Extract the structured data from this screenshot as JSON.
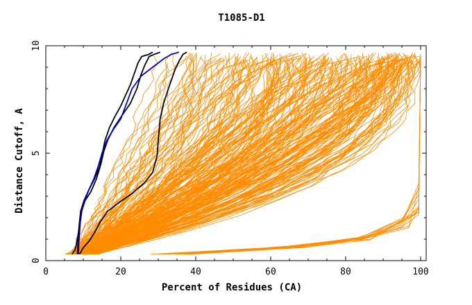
{
  "chart_data": {
    "type": "line",
    "title": "T1085-D1",
    "xlabel": "Percent of Residues (CA)",
    "ylabel": "Distance Cutoff, A",
    "xlim": [
      0,
      100
    ],
    "ylim": [
      0,
      10
    ],
    "x_ticks": [
      0,
      20,
      40,
      60,
      80,
      100
    ],
    "y_ticks": [
      0,
      5,
      10
    ],
    "grid": false,
    "colors": {
      "orange": "#ff8c00",
      "black": "#000000",
      "blue": "#0000cc",
      "axis": "#000000"
    },
    "series": [
      {
        "name": "black-1",
        "color": "black",
        "points": [
          [
            7,
            0.3
          ],
          [
            7.8,
            0.5
          ],
          [
            8.2,
            0.8
          ],
          [
            8.7,
            1.3
          ],
          [
            9,
            1.8
          ],
          [
            9.3,
            2.3
          ],
          [
            10.2,
            2.8
          ],
          [
            11.5,
            3.3
          ],
          [
            13,
            3.8
          ],
          [
            14.4,
            4.4
          ],
          [
            15.1,
            5
          ],
          [
            15.8,
            5.6
          ],
          [
            17,
            6.2
          ],
          [
            18.4,
            6.7
          ],
          [
            20,
            7.2
          ],
          [
            21.3,
            7.7
          ],
          [
            22.6,
            8.2
          ],
          [
            23.6,
            8.7
          ],
          [
            24.6,
            9.2
          ],
          [
            25.6,
            9.5
          ],
          [
            27.5,
            9.6
          ],
          [
            28.5,
            9.7
          ]
        ]
      },
      {
        "name": "black-2",
        "color": "black",
        "points": [
          [
            8.4,
            0.3
          ],
          [
            8.6,
            0.8
          ],
          [
            8.8,
            1.3
          ],
          [
            9,
            1.8
          ],
          [
            9.5,
            2.3
          ],
          [
            10.5,
            2.8
          ],
          [
            12,
            3.2
          ],
          [
            13.5,
            3.8
          ],
          [
            14.7,
            4.5
          ],
          [
            15.5,
            5.1
          ],
          [
            16.5,
            5.6
          ],
          [
            18.2,
            6.2
          ],
          [
            20.5,
            6.8
          ],
          [
            22.5,
            7.3
          ],
          [
            24.3,
            8
          ],
          [
            25.3,
            8.6
          ],
          [
            26.4,
            9.1
          ],
          [
            27.6,
            9.5
          ],
          [
            28.9,
            9.6
          ],
          [
            30.5,
            9.7
          ]
        ]
      },
      {
        "name": "black-3",
        "color": "black",
        "points": [
          [
            9,
            0.3
          ],
          [
            10,
            0.6
          ],
          [
            11.5,
            0.9
          ],
          [
            13,
            1.3
          ],
          [
            14.5,
            1.8
          ],
          [
            16.5,
            2.3
          ],
          [
            19.5,
            2.7
          ],
          [
            22.8,
            3.1
          ],
          [
            26.2,
            3.6
          ],
          [
            28.5,
            4.1
          ],
          [
            29.7,
            4.9
          ],
          [
            30.1,
            5.8
          ],
          [
            30.5,
            6.6
          ],
          [
            31.4,
            7.3
          ],
          [
            32.5,
            7.9
          ],
          [
            33.5,
            8.4
          ],
          [
            34.5,
            8.9
          ],
          [
            35.6,
            9.3
          ],
          [
            36.6,
            9.6
          ],
          [
            37.6,
            9.7
          ]
        ]
      },
      {
        "name": "blue",
        "color": "blue",
        "points": [
          [
            8.7,
            0.3
          ],
          [
            8.8,
            0.8
          ],
          [
            9,
            1.3
          ],
          [
            9.2,
            1.8
          ],
          [
            9.6,
            2.3
          ],
          [
            10.4,
            2.8
          ],
          [
            11.5,
            3.3
          ],
          [
            12.8,
            3.8
          ],
          [
            14,
            4.4
          ],
          [
            15,
            5
          ],
          [
            16.3,
            5.6
          ],
          [
            18,
            6.1
          ],
          [
            20,
            6.6
          ],
          [
            21.5,
            7.3
          ],
          [
            23,
            8
          ],
          [
            25.5,
            8.6
          ],
          [
            28.5,
            9
          ],
          [
            31.5,
            9.4
          ],
          [
            33.5,
            9.6
          ],
          [
            35.5,
            9.7
          ]
        ]
      }
    ]
  }
}
